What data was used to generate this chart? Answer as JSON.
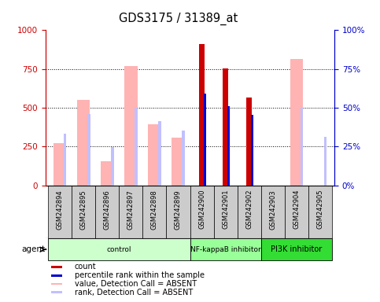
{
  "title": "GDS3175 / 31389_at",
  "samples": [
    "GSM242894",
    "GSM242895",
    "GSM242896",
    "GSM242897",
    "GSM242898",
    "GSM242899",
    "GSM242900",
    "GSM242901",
    "GSM242902",
    "GSM242903",
    "GSM242904",
    "GSM242905"
  ],
  "value_absent": [
    270,
    550,
    155,
    770,
    395,
    305,
    null,
    null,
    null,
    null,
    815,
    null
  ],
  "rank_absent": [
    330,
    460,
    245,
    500,
    415,
    355,
    null,
    null,
    null,
    null,
    500,
    310
  ],
  "count": [
    null,
    null,
    null,
    null,
    null,
    null,
    910,
    755,
    565,
    null,
    null,
    null
  ],
  "percentile": [
    null,
    null,
    null,
    null,
    null,
    null,
    590,
    510,
    455,
    null,
    null,
    null
  ],
  "groups": [
    {
      "label": "control",
      "start": 0,
      "end": 6,
      "color": "#ccffcc"
    },
    {
      "label": "NF-kappaB inhibitor",
      "start": 6,
      "end": 9,
      "color": "#99ff99"
    },
    {
      "label": "PI3K inhibitor",
      "start": 9,
      "end": 12,
      "color": "#33dd33"
    }
  ],
  "ylim": [
    0,
    1000
  ],
  "y2lim": [
    0,
    100
  ],
  "yticks": [
    0,
    250,
    500,
    750,
    1000
  ],
  "y2ticks": [
    0,
    25,
    50,
    75,
    100
  ],
  "left_axis_color": "#cc0000",
  "right_axis_color": "#0000cc",
  "value_absent_color": "#ffb3b3",
  "rank_absent_color": "#c0c0ff",
  "count_color": "#cc0000",
  "percentile_color": "#0000cc",
  "background_color": "#ffffff",
  "plot_bg": "#ffffff",
  "grid_color": "#000000",
  "bar_box_color": "#cccccc",
  "value_bar_width": 0.55,
  "rank_bar_width": 0.12,
  "count_bar_width": 0.25,
  "percentile_bar_width": 0.1
}
